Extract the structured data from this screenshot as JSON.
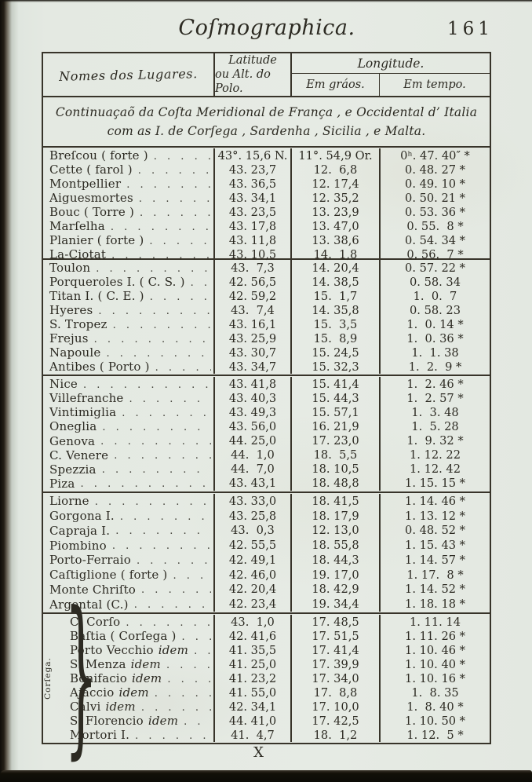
{
  "page": {
    "header_title": "Coſmographica.",
    "page_number": "161",
    "signature_mark": "X"
  },
  "colors": {
    "paper": "#e4e9e2",
    "ink": "#2c2a22",
    "rule": "#38342a"
  },
  "table": {
    "col_headers": {
      "names": "Nomes dos Lugares.",
      "latitude_l1": "Latitude",
      "latitude_l2": "ou Alt. do Polo.",
      "longitude": "Longitude.",
      "em_graos": "Em gráos.",
      "em_tempo": "Em tempo."
    },
    "subtitle_l1": "Continuaçaõ da Coſta Meridional de França , e Occidental d’ Italia",
    "subtitle_l2": "com as I. de Corſega , Sardenha , Sicilia , e Malta.",
    "side_label": "Corſega.",
    "brace_glyph": "}",
    "dot_leader": ". . . . . . . . . . . . . . . . . . . . . . . . . .",
    "groups": [
      {
        "rows": [
          {
            "name": "Breſcou ( forte )",
            "lat": "43°. 15,6 N.",
            "lon": "11°. 54,9 Or.",
            "time": "0ʰ. 47. 40″ *"
          },
          {
            "name": "Cette ( farol )",
            "lat": "43. 23,7",
            "lon": "12.  6,8",
            "time": "0. 48. 27 *"
          },
          {
            "name": "Montpellier",
            "lat": "43. 36,5",
            "lon": "12. 17,4",
            "time": "0. 49. 10 *"
          },
          {
            "name": "Aiguesmortes",
            "lat": "43. 34,1",
            "lon": "12. 35,2",
            "time": "0. 50. 21 *"
          },
          {
            "name": "Bouc ( Torre )",
            "lat": "43. 23,5",
            "lon": "13. 23,9",
            "time": "0. 53. 36 *"
          },
          {
            "name": "Marſelha",
            "lat": "43. 17,8",
            "lon": "13. 47,0",
            "time": "0. 55.  8 *"
          },
          {
            "name": "Planier ( forte )",
            "lat": "43. 11,8",
            "lon": "13. 38,6",
            "time": "0. 54. 34 *"
          },
          {
            "name": "La-Ciotat",
            "lat": "43. 10,5",
            "lon": "14.  1,8",
            "time": "0. 56.  7 *"
          }
        ]
      },
      {
        "rows": [
          {
            "name": "Toulon",
            "lat": "43.  7,3",
            "lon": "14. 20,4",
            "time": "0. 57. 22 *"
          },
          {
            "name": "Porqueroles I. ( C. S. )",
            "lat": "42. 56,5",
            "lon": "14. 38,5",
            "time": "0. 58. 34"
          },
          {
            "name": "Titan I. ( C. E. )",
            "lat": "42. 59,2",
            "lon": "15.  1,7",
            "time": "1.  0.  7"
          },
          {
            "name": "Hyeres",
            "lat": "43.  7,4",
            "lon": "14. 35,8",
            "time": "0. 58. 23"
          },
          {
            "name": "S. Tropez",
            "lat": "43. 16,1",
            "lon": "15.  3,5",
            "time": "1.  0. 14 *"
          },
          {
            "name": "Frejus",
            "lat": "43. 25,9",
            "lon": "15.  8,9",
            "time": "1.  0. 36 *"
          },
          {
            "name": "Napoule",
            "lat": "43. 30,7",
            "lon": "15. 24,5",
            "time": "1.  1. 38"
          },
          {
            "name": "Antibes ( Porto )",
            "lat": "43. 34,7",
            "lon": "15. 32,3",
            "time": "1.  2.  9 *"
          }
        ]
      },
      {
        "rows": [
          {
            "name": "Nice",
            "lat": "43. 41,8",
            "lon": "15. 41,4",
            "time": "1.  2. 46 *"
          },
          {
            "name": "Villefranche",
            "lat": "43. 40,3",
            "lon": "15. 44,3",
            "time": "1.  2. 57 *"
          },
          {
            "name": "Vintimiglia",
            "lat": "43. 49,3",
            "lon": "15. 57,1",
            "time": "1.  3. 48"
          },
          {
            "name": "Oneglia",
            "lat": "43. 56,0",
            "lon": "16. 21,9",
            "time": "1.  5. 28"
          },
          {
            "name": "Genova",
            "lat": "44. 25,0",
            "lon": "17. 23,0",
            "time": "1.  9. 32 *"
          },
          {
            "name": "C. Venere",
            "lat": "44.  1,0",
            "lon": "18.  5,5",
            "time": "1. 12. 22"
          },
          {
            "name": "Spezzia",
            "lat": "44.  7,0",
            "lon": "18. 10,5",
            "time": "1. 12. 42"
          },
          {
            "name": "Piza",
            "lat": "43. 43,1",
            "lon": "18. 48,8",
            "time": "1. 15. 15 *"
          }
        ]
      },
      {
        "rows": [
          {
            "name": "Liorne",
            "lat": "43. 33,0",
            "lon": "18. 41,5",
            "time": "1. 14. 46 *"
          },
          {
            "name": "Gorgona I.",
            "lat": "43. 25,8",
            "lon": "18. 17,9",
            "time": "1. 13. 12 *"
          },
          {
            "name": "Capraja I.",
            "lat": "43.  0,3",
            "lon": "12. 13,0",
            "time": "0. 48. 52 *"
          },
          {
            "name": "Piombino",
            "lat": "42. 55,5",
            "lon": "18. 55,8",
            "time": "1. 15. 43 *"
          },
          {
            "name": "Porto-Ferraio",
            "lat": "42. 49,1",
            "lon": "18. 44,3",
            "time": "1. 14. 57 *"
          },
          {
            "name": "Caſtiglione ( forte )",
            "lat": "42. 46,0",
            "lon": "19. 17,0",
            "time": "1. 17.  8 *"
          },
          {
            "name": "Monte Chriſto",
            "lat": "42. 20,4",
            "lon": "18. 42,9",
            "time": "1. 14. 52 *"
          },
          {
            "name": "Argental (C.)",
            "lat": "42. 23,4",
            "lon": "19. 34,4",
            "time": "1. 18. 18 *"
          }
        ]
      },
      {
        "rows": [
          {
            "name": "C. Corſo",
            "lat": "43.  1,0",
            "lon": "17. 48,5",
            "time": "1. 11. 14"
          },
          {
            "name": "Baſtia ( Corſega )",
            "lat": "42. 41,6",
            "lon": "17. 51,5",
            "time": "1. 11. 26 *"
          },
          {
            "name": "Porto Vecchio",
            "em": "idem",
            "lat": "41. 35,5",
            "lon": "17. 41,4",
            "time": "1. 10. 46 *"
          },
          {
            "name": "S. Menza",
            "em": "idem",
            "lat": "41. 25,0",
            "lon": "17. 39,9",
            "time": "1. 10. 40 *"
          },
          {
            "name": "Bonifacio",
            "em": "idem",
            "lat": "41. 23,2",
            "lon": "17. 34,0",
            "time": "1. 10. 16 *"
          },
          {
            "name": "Ajaccio",
            "em": "idem",
            "lat": "41. 55,0",
            "lon": "17.  8,8",
            "time": "1.  8. 35"
          },
          {
            "name": "Calvi",
            "em": "idem",
            "lat": "42. 34,1",
            "lon": "17. 10,0",
            "time": "1.  8. 40 *"
          },
          {
            "name": "S. Florencio",
            "em": "idem",
            "lat": "44. 41,0",
            "lon": "17. 42,5",
            "time": "1. 10. 50 *"
          },
          {
            "name": "Mortori I.",
            "lat": "41.  4,7",
            "lon": "18.  1,2",
            "time": "1. 12.  5 *"
          }
        ]
      }
    ]
  }
}
